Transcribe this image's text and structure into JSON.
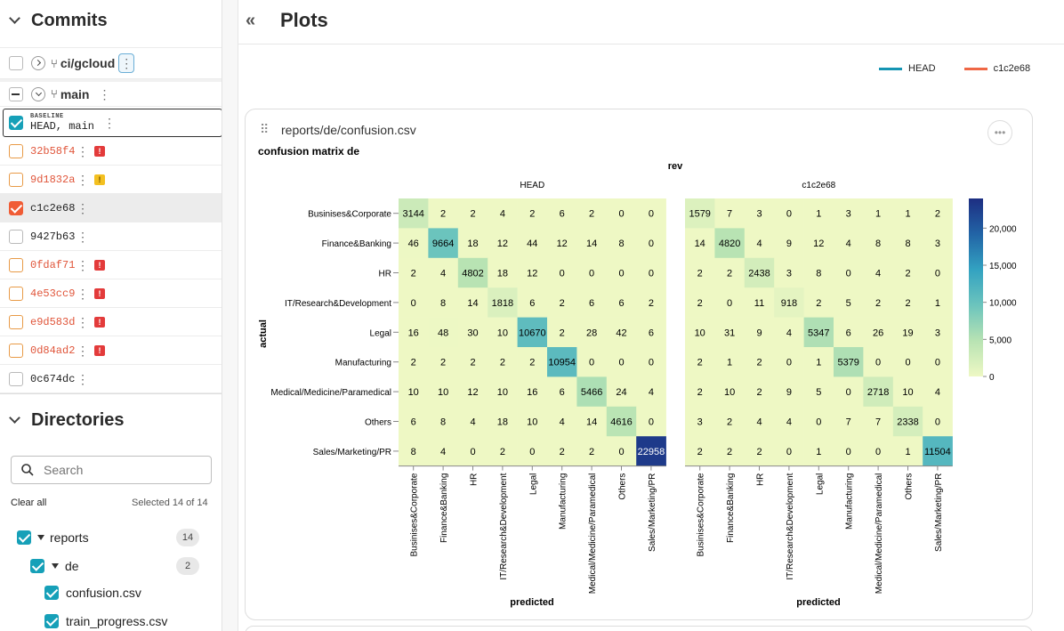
{
  "sidebar": {
    "commits_title": "Commits",
    "branches": [
      {
        "name": "ci/gcloud"
      },
      {
        "name": "main"
      }
    ],
    "baseline_label": "BASELINE",
    "baseline_commit": "HEAD, main",
    "commits": [
      {
        "sha": "32b58f4",
        "badge": "!",
        "badge_type": "error",
        "state": "orange"
      },
      {
        "sha": "9d1832a",
        "badge": "!",
        "badge_type": "warning",
        "state": "orange"
      },
      {
        "sha": "c1c2e68",
        "badge": "",
        "badge_type": "",
        "state": "checked"
      },
      {
        "sha": "9427b63",
        "badge": "",
        "badge_type": "",
        "state": "plain"
      },
      {
        "sha": "0fdaf71",
        "badge": "!",
        "badge_type": "error",
        "state": "orange"
      },
      {
        "sha": "4e53cc9",
        "badge": "!",
        "badge_type": "error",
        "state": "orange"
      },
      {
        "sha": "e9d583d",
        "badge": "!",
        "badge_type": "error",
        "state": "orange"
      },
      {
        "sha": "0d84ad2",
        "badge": "!",
        "badge_type": "error",
        "state": "orange"
      },
      {
        "sha": "0c674dc",
        "badge": "",
        "badge_type": "",
        "state": "plain"
      }
    ],
    "directories_title": "Directories",
    "search_placeholder": "Search",
    "clear_all": "Clear all",
    "selected_text": "Selected 14 of 14",
    "tree": [
      {
        "label": "reports",
        "count": "14"
      },
      {
        "label": "de",
        "count": "2"
      },
      {
        "label": "confusion.csv"
      },
      {
        "label": "train_progress.csv"
      }
    ]
  },
  "main": {
    "title": "Plots",
    "legend": [
      {
        "name": "HEAD",
        "color": "#1595b3"
      },
      {
        "name": "c1c2e68",
        "color": "#ef6745"
      }
    ],
    "plot_path": "reports/de/confusion.csv",
    "colors": {
      "accent_teal": "#16a0b8",
      "accent_orange": "#f05c35"
    }
  },
  "chart_data": {
    "type": "heatmap",
    "title": "confusion matrix de",
    "facet_title": "rev",
    "xlabel": "predicted",
    "ylabel": "actual",
    "categories": [
      "Businises&Corporate",
      "Finance&Banking",
      "HR",
      "IT/Research&Development",
      "Legal",
      "Manufacturing",
      "Medical/Medicine/Paramedical",
      "Others",
      "Sales/Marketing/PR"
    ],
    "color_scale": {
      "min": 0,
      "max": 24000,
      "ticks": [
        "0",
        "5,000",
        "10,000",
        "15,000",
        "20,000"
      ],
      "tick_values": [
        0,
        5000,
        10000,
        15000,
        20000
      ]
    },
    "panels": [
      {
        "name": "HEAD",
        "matrix": [
          [
            3144,
            2,
            2,
            4,
            2,
            6,
            2,
            0,
            0
          ],
          [
            46,
            9664,
            18,
            12,
            44,
            12,
            14,
            8,
            0
          ],
          [
            2,
            4,
            4802,
            18,
            12,
            0,
            0,
            0,
            0
          ],
          [
            0,
            8,
            14,
            1818,
            6,
            2,
            6,
            6,
            2
          ],
          [
            16,
            48,
            30,
            10,
            10670,
            2,
            28,
            42,
            6
          ],
          [
            2,
            2,
            2,
            2,
            2,
            10954,
            0,
            0,
            0
          ],
          [
            10,
            10,
            12,
            10,
            16,
            6,
            5466,
            24,
            4
          ],
          [
            6,
            8,
            4,
            18,
            10,
            4,
            14,
            4616,
            0
          ],
          [
            8,
            4,
            0,
            2,
            0,
            2,
            2,
            0,
            22958
          ]
        ]
      },
      {
        "name": "c1c2e68",
        "matrix": [
          [
            1579,
            7,
            3,
            0,
            1,
            3,
            1,
            1,
            2
          ],
          [
            14,
            4820,
            4,
            9,
            12,
            4,
            8,
            8,
            3
          ],
          [
            2,
            2,
            2438,
            3,
            8,
            0,
            4,
            2,
            0
          ],
          [
            2,
            0,
            11,
            918,
            2,
            5,
            2,
            2,
            1
          ],
          [
            10,
            31,
            9,
            4,
            5347,
            6,
            26,
            19,
            3
          ],
          [
            2,
            1,
            2,
            0,
            1,
            5379,
            0,
            0,
            0
          ],
          [
            2,
            10,
            2,
            9,
            5,
            0,
            2718,
            10,
            4
          ],
          [
            3,
            2,
            4,
            4,
            0,
            7,
            7,
            2338,
            0
          ],
          [
            2,
            2,
            2,
            0,
            1,
            0,
            0,
            1,
            11504
          ]
        ]
      }
    ]
  }
}
